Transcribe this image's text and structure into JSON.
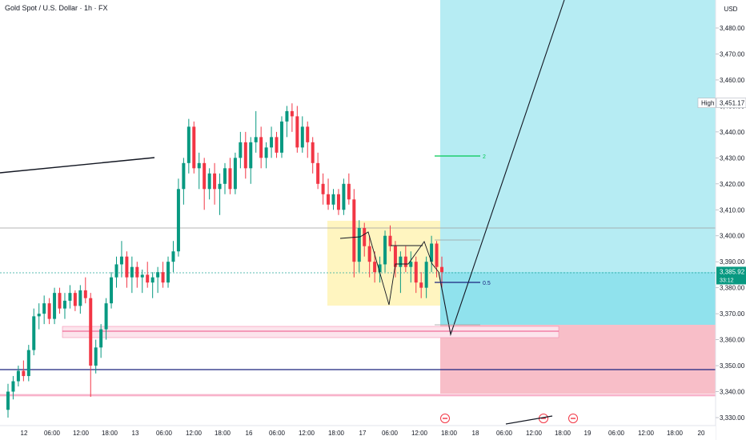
{
  "chart_data": {
    "type": "candlestick",
    "title": "Gold Spot / U.S. Dollar · 1h · FX",
    "currency": "USD",
    "y_ticks": [
      "3,480.00",
      "3,470.00",
      "3,460.00",
      "3,450.00",
      "3,440.00",
      "3,430.00",
      "3,420.00",
      "3,410.00",
      "3,400.00",
      "3,390.00",
      "3,380.00",
      "3,370.00",
      "3,360.00",
      "3,350.00",
      "3,340.00",
      "3,330.00"
    ],
    "x_ticks": [
      "12",
      "06:00",
      "12:00",
      "18:00",
      "13",
      "06:00",
      "12:00",
      "18:00",
      "16",
      "06:00",
      "12:00",
      "18:00",
      "17",
      "06:00",
      "12:00",
      "18:00",
      "18",
      "06:00",
      "12:00",
      "18:00",
      "19",
      "06:00",
      "12:00",
      "18:00",
      "20"
    ],
    "ylim": [
      3328,
      3486
    ],
    "high_label": "High",
    "high_value": "3,451.17",
    "current_price": "3,385.92",
    "current_sub": "33:12",
    "position_labels": {
      "target_ratio": "2",
      "mid_ratio": "0.5"
    },
    "candles": [
      [
        3333,
        3343,
        3330,
        3340
      ],
      [
        3340,
        3346,
        3337,
        3344
      ],
      [
        3344,
        3350,
        3342,
        3348
      ],
      [
        3348,
        3352,
        3344,
        3346
      ],
      [
        3346,
        3358,
        3344,
        3356
      ],
      [
        3356,
        3372,
        3354,
        3369
      ],
      [
        3369,
        3374,
        3364,
        3370
      ],
      [
        3370,
        3377,
        3366,
        3374
      ],
      [
        3374,
        3376,
        3366,
        3368
      ],
      [
        3368,
        3380,
        3366,
        3378
      ],
      [
        3378,
        3380,
        3370,
        3372
      ],
      [
        3372,
        3378,
        3368,
        3375
      ],
      [
        3375,
        3381,
        3372,
        3378
      ],
      [
        3378,
        3379,
        3371,
        3373
      ],
      [
        3373,
        3381,
        3370,
        3379
      ],
      [
        3379,
        3384,
        3374,
        3376
      ],
      [
        3376,
        3378,
        3338,
        3350
      ],
      [
        3350,
        3360,
        3347,
        3357
      ],
      [
        3357,
        3366,
        3353,
        3364
      ],
      [
        3364,
        3376,
        3360,
        3374
      ],
      [
        3374,
        3386,
        3372,
        3384
      ],
      [
        3384,
        3392,
        3380,
        3389
      ],
      [
        3389,
        3398,
        3384,
        3392
      ],
      [
        3392,
        3394,
        3380,
        3384
      ],
      [
        3384,
        3392,
        3378,
        3388
      ],
      [
        3388,
        3390,
        3380,
        3384
      ],
      [
        3384,
        3387,
        3378,
        3385
      ],
      [
        3385,
        3390,
        3380,
        3382
      ],
      [
        3382,
        3386,
        3376,
        3384
      ],
      [
        3384,
        3388,
        3378,
        3386
      ],
      [
        3386,
        3390,
        3380,
        3382
      ],
      [
        3382,
        3392,
        3380,
        3390
      ],
      [
        3390,
        3398,
        3386,
        3394
      ],
      [
        3394,
        3422,
        3392,
        3418
      ],
      [
        3418,
        3430,
        3412,
        3428
      ],
      [
        3428,
        3445,
        3424,
        3442
      ],
      [
        3442,
        3444,
        3424,
        3426
      ],
      [
        3426,
        3432,
        3418,
        3428
      ],
      [
        3428,
        3430,
        3410,
        3418
      ],
      [
        3418,
        3426,
        3414,
        3424
      ],
      [
        3424,
        3428,
        3412,
        3418
      ],
      [
        3418,
        3424,
        3408,
        3420
      ],
      [
        3420,
        3428,
        3416,
        3426
      ],
      [
        3426,
        3430,
        3416,
        3418
      ],
      [
        3418,
        3432,
        3416,
        3430
      ],
      [
        3430,
        3440,
        3426,
        3436
      ],
      [
        3436,
        3440,
        3422,
        3426
      ],
      [
        3426,
        3438,
        3420,
        3436
      ],
      [
        3436,
        3448,
        3432,
        3438
      ],
      [
        3438,
        3442,
        3426,
        3430
      ],
      [
        3430,
        3436,
        3426,
        3434
      ],
      [
        3434,
        3442,
        3430,
        3438
      ],
      [
        3438,
        3440,
        3430,
        3432
      ],
      [
        3432,
        3446,
        3430,
        3444
      ],
      [
        3444,
        3450,
        3438,
        3448
      ],
      [
        3448,
        3451,
        3440,
        3446
      ],
      [
        3446,
        3450,
        3432,
        3434
      ],
      [
        3434,
        3446,
        3432,
        3442
      ],
      [
        3442,
        3444,
        3430,
        3436
      ],
      [
        3436,
        3438,
        3424,
        3428
      ],
      [
        3428,
        3432,
        3418,
        3420
      ],
      [
        3420,
        3424,
        3412,
        3416
      ],
      [
        3416,
        3422,
        3410,
        3412
      ],
      [
        3412,
        3418,
        3410,
        3416
      ],
      [
        3416,
        3418,
        3408,
        3410
      ],
      [
        3410,
        3422,
        3408,
        3420
      ],
      [
        3420,
        3424,
        3412,
        3414
      ],
      [
        3414,
        3418,
        3384,
        3390
      ],
      [
        3390,
        3406,
        3386,
        3403
      ],
      [
        3403,
        3405,
        3392,
        3396
      ],
      [
        3396,
        3400,
        3384,
        3390
      ],
      [
        3390,
        3394,
        3382,
        3386
      ],
      [
        3386,
        3392,
        3382,
        3389
      ],
      [
        3389,
        3402,
        3386,
        3400
      ],
      [
        3400,
        3404,
        3394,
        3396
      ],
      [
        3396,
        3398,
        3384,
        3388
      ],
      [
        3388,
        3394,
        3378,
        3392
      ],
      [
        3392,
        3396,
        3386,
        3388
      ],
      [
        3388,
        3394,
        3382,
        3390
      ],
      [
        3390,
        3392,
        3378,
        3382
      ],
      [
        3382,
        3386,
        3376,
        3380
      ],
      [
        3380,
        3392,
        3376,
        3390
      ],
      [
        3390,
        3400,
        3386,
        3397
      ],
      [
        3397,
        3398,
        3384,
        3388
      ],
      [
        3388,
        3392,
        3380,
        3386
      ]
    ]
  }
}
